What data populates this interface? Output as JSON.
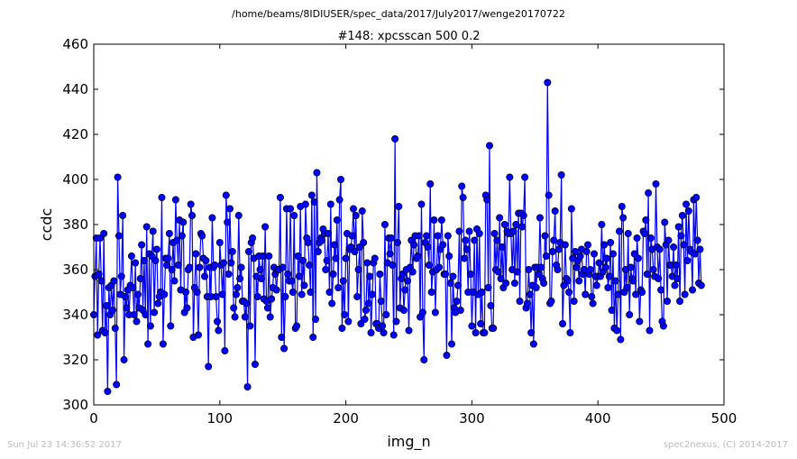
{
  "suptitle": "/home/beams/8IDIUSER/spec_data/2017/July2017/wenge20170722",
  "footer": {
    "timestamp": "Sun Jul 23 14:36:52 2017",
    "credit": "spec2nexus, (C) 2014-2017"
  },
  "colors": {
    "series": "#0000ff",
    "text": "#000000",
    "footer": "#bbbbbb"
  },
  "chart_data": {
    "type": "line",
    "title": "#148: xpcsscan 500 0.2",
    "xlabel": "img_n",
    "ylabel": "ccdc",
    "xlim": [
      0,
      500
    ],
    "ylim": [
      300,
      460
    ],
    "xticks": [
      0,
      100,
      200,
      300,
      400,
      500
    ],
    "yticks": [
      300,
      320,
      340,
      360,
      380,
      400,
      420,
      440,
      460
    ],
    "grid": false,
    "legend": "none",
    "marker": "circle",
    "series": [
      {
        "x_start": 0,
        "x_step": 1,
        "values": [
          340,
          357,
          374,
          331,
          358,
          374,
          355,
          333,
          376,
          332,
          344,
          306,
          352,
          340,
          353,
          342,
          355,
          334,
          309,
          401,
          375,
          349,
          357,
          384,
          320,
          348,
          343,
          351,
          340,
          353,
          366,
          352,
          340,
          363,
          337,
          349,
          343,
          356,
          371,
          342,
          364,
          340,
          379,
          327,
          367,
          335,
          366,
          377,
          341,
          364,
          369,
          345,
          348,
          350,
          392,
          327,
          349,
          365,
          362,
          365,
          376,
          335,
          360,
          372,
          355,
          391,
          373,
          362,
          382,
          351,
          375,
          381,
          341,
          350,
          343,
          360,
          361,
          389,
          384,
          330,
          352,
          367,
          350,
          331,
          361,
          376,
          375,
          365,
          357,
          364,
          348,
          317,
          361,
          348,
          383,
          361,
          362,
          348,
          337,
          333,
          372,
          362,
          349,
          363,
          324,
          393,
          381,
          358,
          387,
          363,
          368,
          343,
          339,
          349,
          352,
          384,
          356,
          361,
          346,
          346,
          339,
          345,
          308,
          368,
          335,
          372,
          374,
          365,
          318,
          357,
          348,
          366,
          360,
          356,
          366,
          347,
          379,
          346,
          343,
          366,
          339,
          347,
          352,
          361,
          358,
          351,
          360,
          360,
          392,
          330,
          361,
          325,
          348,
          387,
          358,
          355,
          387,
          355,
          350,
          384,
          334,
          335,
          366,
          357,
          388,
          349,
          364,
          353,
          389,
          374,
          372,
          362,
          350,
          393,
          330,
          390,
          338,
          403,
          368,
          372,
          374,
          373,
          378,
          376,
          360,
          364,
          376,
          350,
          389,
          345,
          358,
          371,
          365,
          382,
          352,
          391,
          400,
          334,
          355,
          340,
          365,
          376,
          337,
          369,
          370,
          375,
          387,
          368,
          384,
          348,
          360,
          370,
          336,
          386,
          372,
          338,
          342,
          363,
          345,
          357,
          332,
          349,
          363,
          365,
          336,
          336,
          334,
          358,
          346,
          335,
          332,
          380,
          340,
          363,
          374,
          367,
          374,
          362,
          331,
          418,
          337,
          372,
          388,
          343,
          356,
          358,
          342,
          351,
          360,
          355,
          333,
          361,
          373,
          359,
          371,
          375,
          365,
          366,
          375,
          339,
          389,
          341,
          320,
          372,
          375,
          370,
          362,
          398,
          350,
          359,
          382,
          341,
          360,
          375,
          361,
          369,
          382,
          371,
          358,
          358,
          322,
          375,
          366,
          354,
          327,
          357,
          343,
          341,
          346,
          353,
          377,
          342,
          397,
          392,
          365,
          373,
          369,
          350,
          377,
          358,
          335,
          350,
          373,
          332,
          378,
          349,
          376,
          336,
          350,
          332,
          332,
          393,
          391,
          352,
          415,
          344,
          334,
          334,
          376,
          360,
          373,
          359,
          383,
          356,
          370,
          352,
          380,
          354,
          377,
          376,
          401,
          376,
          360,
          377,
          354,
          380,
          359,
          385,
          346,
          385,
          379,
          384,
          401,
          343,
          345,
          360,
          349,
          332,
          353,
          327,
          361,
          352,
          361,
          358,
          383,
          361,
          356,
          354,
          375,
          366,
          443,
          393,
          345,
          346,
          368,
          373,
          386,
          362,
          360,
          369,
          372,
          402,
          336,
          353,
          371,
          356,
          355,
          350,
          332,
          387,
          365,
          346,
          368,
          361,
          364,
          355,
          366,
          369,
          358,
          360,
          349,
          368,
          371,
          358,
          360,
          348,
          345,
          367,
          357,
          353,
          357,
          363,
          357,
          380,
          359,
          371,
          361,
          365,
          352,
          357,
          372,
          342,
          367,
          334,
          355,
          333,
          349,
          377,
          329,
          388,
          383,
          350,
          360,
          352,
          376,
          340,
          361,
          356,
          355,
          367,
          349,
          374,
          365,
          337,
          351,
          350,
          377,
          376,
          382,
          358,
          394,
          333,
          374,
          369,
          360,
          357,
          398,
          370,
          356,
          369,
          351,
          337,
          335,
          381,
          371,
          346,
          373,
          362,
          362,
          357,
          370,
          353,
          362,
          356,
          379,
          346,
          375,
          384,
          371,
          349,
          389,
          364,
          386,
          369,
          368,
          351,
          391,
          367,
          392,
          373,
          354,
          369,
          353
        ]
      }
    ]
  }
}
